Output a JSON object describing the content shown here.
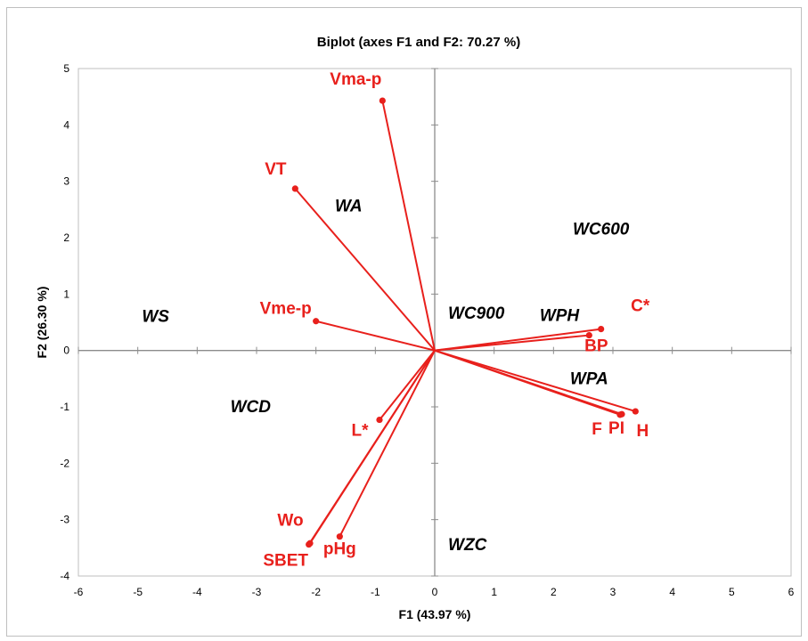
{
  "chart_data": {
    "type": "scatter",
    "title": "Biplot (axes F1 and F2: 70.27 %)",
    "xlabel": "F1 (43.97 %)",
    "ylabel": "F2 (26.30 %)",
    "xlim": [
      -6,
      6
    ],
    "ylim": [
      -4,
      5
    ],
    "x_ticks": [
      -6,
      -5,
      -4,
      -3,
      -2,
      -1,
      0,
      1,
      2,
      3,
      4,
      5,
      6
    ],
    "y_ticks": [
      -4,
      -3,
      -2,
      -1,
      0,
      1,
      2,
      3,
      4,
      5
    ],
    "grid": false,
    "vector_color": "#e8201c",
    "observation_color": "#000000",
    "variables": [
      {
        "name": "Vma-p",
        "x": -0.88,
        "y": 4.43
      },
      {
        "name": "VT",
        "x": -2.35,
        "y": 2.87
      },
      {
        "name": "Vme-p",
        "x": -2.0,
        "y": 0.52
      },
      {
        "name": "C*",
        "x": 2.8,
        "y": 0.38
      },
      {
        "name": "BP",
        "x": 2.6,
        "y": 0.27
      },
      {
        "name": "H",
        "x": 3.38,
        "y": -1.08
      },
      {
        "name": "PI",
        "x": 3.15,
        "y": -1.13
      },
      {
        "name": "F",
        "x": 3.12,
        "y": -1.14
      },
      {
        "name": "L*",
        "x": -0.93,
        "y": -1.23
      },
      {
        "name": "pHg",
        "x": -1.6,
        "y": -3.3
      },
      {
        "name": "Wo",
        "x": -2.1,
        "y": -3.42
      },
      {
        "name": "SBET",
        "x": -2.12,
        "y": -3.44
      }
    ],
    "observations": [
      {
        "name": "WA",
        "x": -1.45,
        "y": 2.56
      },
      {
        "name": "WC600",
        "x": 2.8,
        "y": 2.15
      },
      {
        "name": "WS",
        "x": -4.7,
        "y": 0.6
      },
      {
        "name": "WC900",
        "x": 0.7,
        "y": 0.66
      },
      {
        "name": "WPH",
        "x": 2.1,
        "y": 0.62
      },
      {
        "name": "WCD",
        "x": -3.1,
        "y": -1.0
      },
      {
        "name": "WPA",
        "x": 2.6,
        "y": -0.5
      },
      {
        "name": "WZC",
        "x": 0.55,
        "y": -3.45
      }
    ]
  }
}
